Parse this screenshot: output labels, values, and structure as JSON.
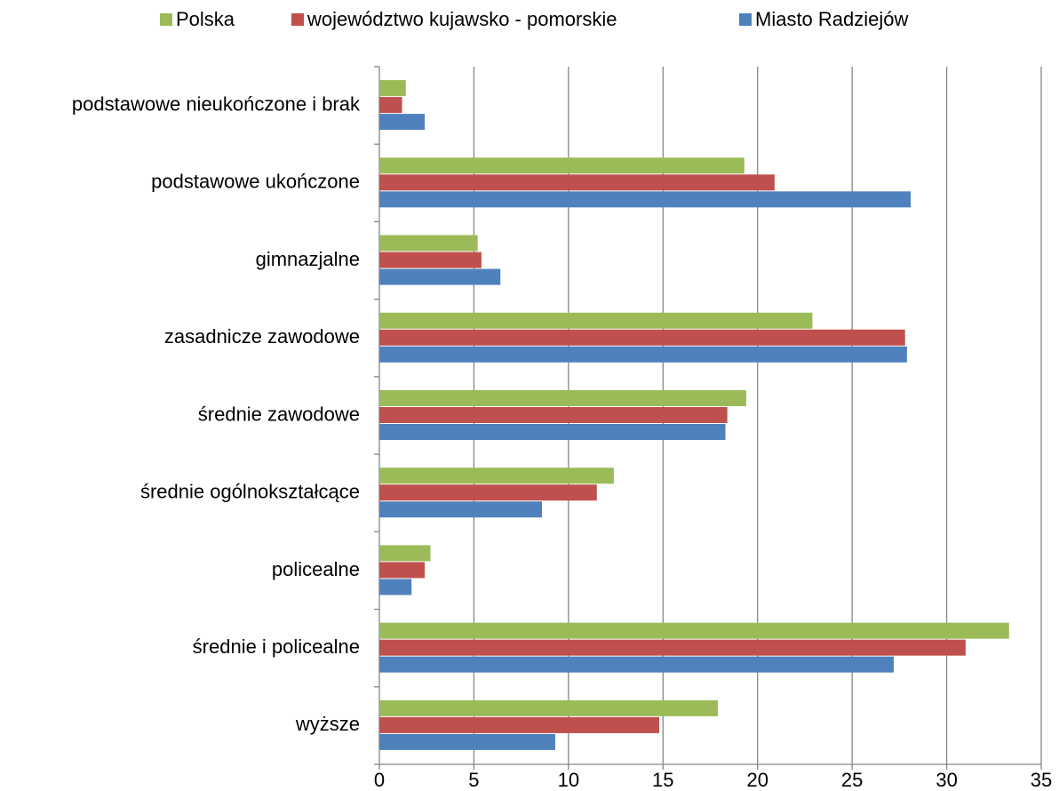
{
  "chart_data": {
    "type": "bar",
    "orientation": "horizontal",
    "categories": [
      "podstawowe nieukończone i brak",
      "podstawowe ukończone",
      "gimnazjalne",
      "zasadnicze zawodowe",
      "średnie zawodowe",
      "średnie ogólnokształcące",
      "policealne",
      "średnie i policealne",
      "wyższe"
    ],
    "series": [
      {
        "name": "Polska",
        "color": "#9bbb59",
        "values": [
          1.4,
          19.3,
          5.2,
          22.9,
          19.4,
          12.4,
          2.7,
          33.3,
          17.9
        ]
      },
      {
        "name": "województwo kujawsko - pomorskie",
        "color": "#c0504d",
        "values": [
          1.2,
          20.9,
          5.4,
          27.8,
          18.4,
          11.5,
          2.4,
          31.0,
          14.8
        ]
      },
      {
        "name": "Miasto Radziejów",
        "color": "#4f81bd",
        "values": [
          2.4,
          28.1,
          6.4,
          27.9,
          18.3,
          8.6,
          1.7,
          27.2,
          9.3
        ]
      }
    ],
    "xlim": [
      0,
      35
    ],
    "xticks": [
      0,
      5,
      10,
      15,
      20,
      25,
      30,
      35
    ],
    "grid": true,
    "legend": "top"
  }
}
